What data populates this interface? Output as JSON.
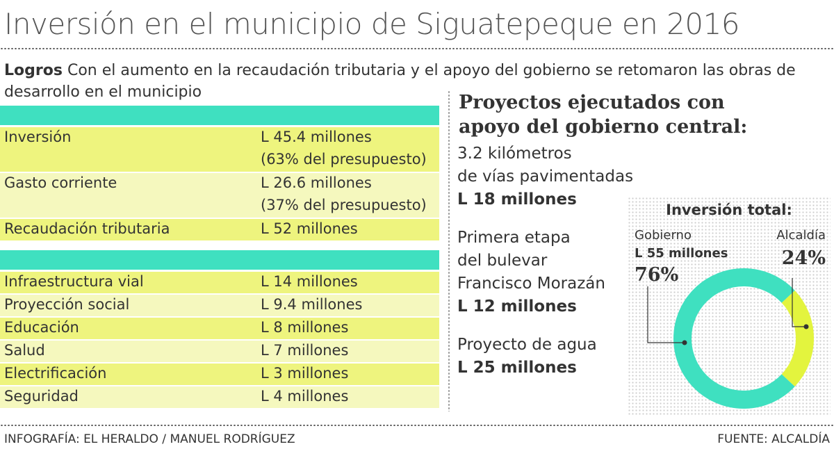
{
  "header": {
    "title": "Inversión en el municipio de Siguatepeque en 2016",
    "lead": "Logros",
    "intro": "Con el aumento en la recaudación tributaria y el apoyo del gobierno se retomaron las obras de desarrollo en el municipio"
  },
  "table": {
    "sections": [
      {
        "rows": [
          {
            "label": "Inversión",
            "value": "L 45.4 millones",
            "note": "(63% del presupuesto)"
          },
          {
            "label": "Gasto corriente",
            "value": "L 26.6 millones",
            "note": "(37% del presupuesto)"
          },
          {
            "label": "Recaudación tributaria",
            "value": "L 52 millones"
          }
        ]
      },
      {
        "rows": [
          {
            "label": "Infraestructura vial",
            "value": "L 14 millones"
          },
          {
            "label": "Proyección social",
            "value": "L 9.4 millones"
          },
          {
            "label": "Educación",
            "value": "L 8 millones"
          },
          {
            "label": "Salud",
            "value": "L 7 millones"
          },
          {
            "label": "Electrificación",
            "value": "L 3  millones"
          },
          {
            "label": "Seguridad",
            "value": "L 4 millones"
          }
        ]
      }
    ]
  },
  "projects": {
    "heading": [
      "Proyectos ejecutados con",
      "apoyo del gobierno central:"
    ],
    "items": [
      {
        "lines": [
          "3.2 kilómetros",
          "de vías pavimentadas"
        ],
        "amount": "L 18 millones"
      },
      {
        "lines": [
          "Primera etapa",
          "del bulevar",
          "Francisco Morazán"
        ],
        "amount": "L 12 millones"
      },
      {
        "lines": [
          "Proyecto de agua"
        ],
        "amount": "L 25 millones"
      }
    ]
  },
  "chart_data": {
    "type": "pie",
    "title": "Inversión total:",
    "categories": [
      "Gobierno",
      "Alcaldía"
    ],
    "values": [
      76,
      24
    ],
    "value_labels": [
      "76%",
      "24%"
    ],
    "annotation": "L 55 millones",
    "colors": [
      "#3fe0c0",
      "#e3f43e"
    ]
  },
  "footer": {
    "credit": "INFOGRAFÍA: EL HERALDO / MANUEL RODRÍGUEZ",
    "source": "FUENTE: ALCALDÍA"
  }
}
